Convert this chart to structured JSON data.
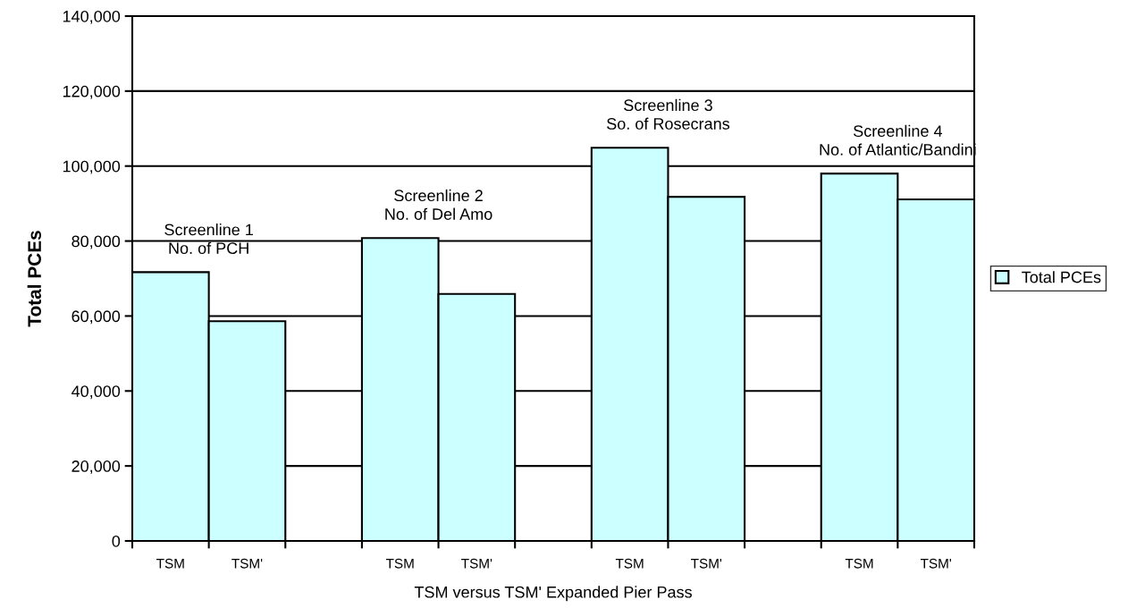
{
  "chart_data": {
    "type": "bar",
    "xlabel": "TSM versus TSM' Expanded Pier Pass",
    "ylabel": "Total PCEs",
    "categories": [
      "TSM",
      "TSM'",
      null,
      "TSM",
      "TSM'",
      null,
      "TSM",
      "TSM'",
      null,
      "TSM",
      "TSM'"
    ],
    "series": [
      {
        "name": "Total PCEs",
        "color": "#ccffff",
        "values": [
          71700,
          58600,
          null,
          80800,
          65900,
          null,
          104900,
          91800,
          null,
          98000,
          91100
        ]
      }
    ],
    "ylim": [
      0,
      140000
    ],
    "yticks": [
      {
        "value": 0,
        "label": "0"
      },
      {
        "value": 20000,
        "label": "20,000"
      },
      {
        "value": 40000,
        "label": "40,000"
      },
      {
        "value": 60000,
        "label": "60,000"
      },
      {
        "value": 80000,
        "label": "80,000"
      },
      {
        "value": 100000,
        "label": "100,000"
      },
      {
        "value": 120000,
        "label": "120,000"
      },
      {
        "value": 140000,
        "label": "140,000"
      }
    ],
    "grid": "y",
    "legend": "right",
    "annotations": [
      "Screenline 1\nNo. of PCH",
      "Screenline 2\nNo. of Del Amo",
      "Screenline 3\nSo. of Rosecrans",
      "Screenline 4\nNo. of Atlantic/Bandini"
    ]
  }
}
